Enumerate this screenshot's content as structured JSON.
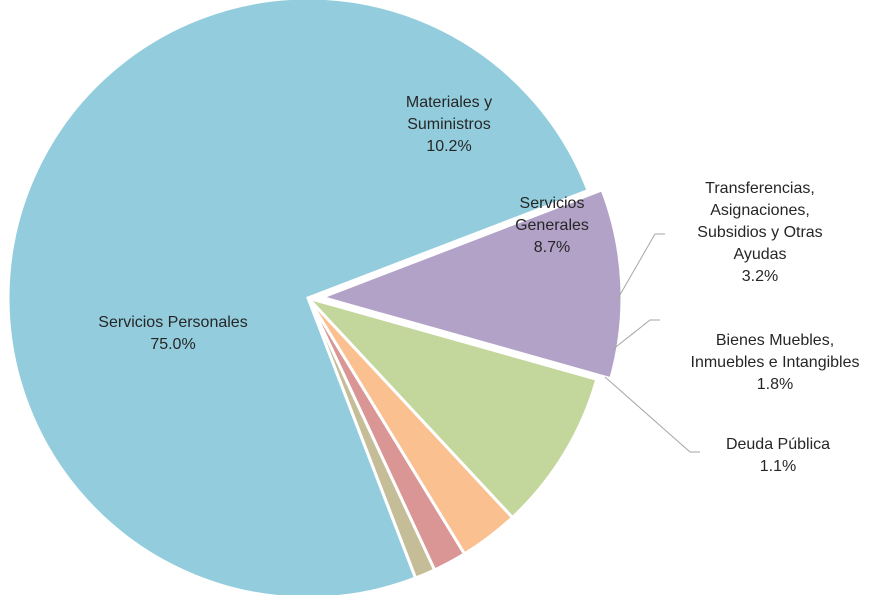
{
  "chart_data": {
    "type": "pie",
    "title": "",
    "slices": [
      {
        "label_lines": [
          "Materiales y",
          "Suministros"
        ],
        "value": 10.2,
        "value_label": "10.2%",
        "color": "#b3a2c7"
      },
      {
        "label_lines": [
          "Servicios",
          "Generales"
        ],
        "value": 8.7,
        "value_label": "8.7%",
        "color": "#c3d69b"
      },
      {
        "label_lines": [
          "Transferencias,",
          "Asignaciones,",
          "Subsidios y Otras",
          "Ayudas"
        ],
        "value": 3.2,
        "value_label": "3.2%",
        "color": "#fac090"
      },
      {
        "label_lines": [
          "Bienes Muebles,",
          "Inmuebles e Intangibles"
        ],
        "value": 1.8,
        "value_label": "1.8%",
        "color": "#d99694"
      },
      {
        "label_lines": [
          "Deuda Pública"
        ],
        "value": 1.1,
        "value_label": "1.1%",
        "color": "#c4bd97"
      },
      {
        "label_lines": [
          "Servicios Personales"
        ],
        "value": 75.0,
        "value_label": "75.0%",
        "color": "#93cddd"
      }
    ]
  }
}
